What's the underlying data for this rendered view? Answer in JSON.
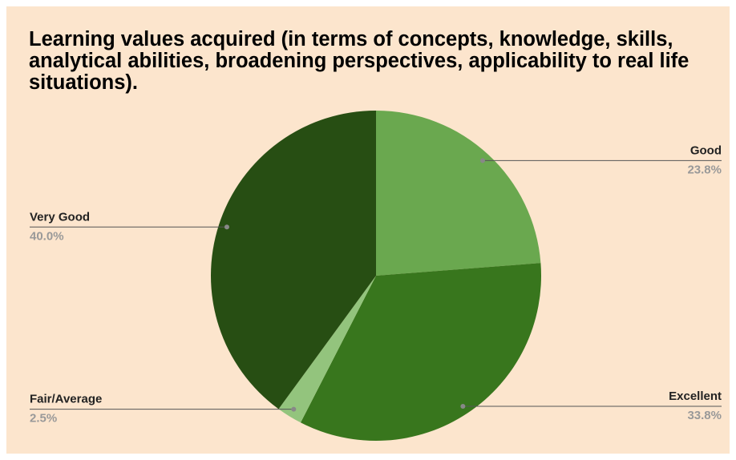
{
  "chart_data": {
    "type": "pie",
    "title": "Learning values acquired (in terms of concepts, knowledge, skills, analytical abilities, broadening perspectives, applicability to real life situations).",
    "categories": [
      "Good",
      "Excellent",
      "Fair/Average",
      "Very Good"
    ],
    "values": [
      23.8,
      33.8,
      2.5,
      40.0
    ],
    "value_labels": [
      "23.8%",
      "33.8%",
      "2.5%",
      "40.0%"
    ],
    "colors": [
      "#6aa84f",
      "#38761d",
      "#93c47d",
      "#274e13"
    ]
  }
}
